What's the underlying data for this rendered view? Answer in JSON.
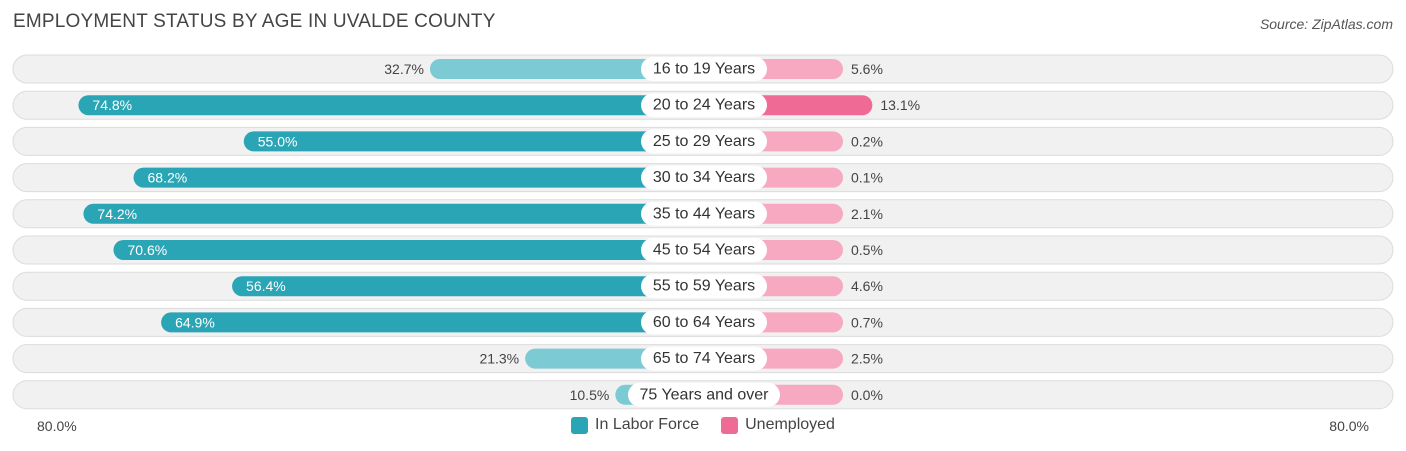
{
  "title": "EMPLOYMENT STATUS BY AGE IN UVALDE COUNTY",
  "source": "Source: ZipAtlas.com",
  "colors": {
    "labor_strong": "#2aa5b5",
    "labor_light": "#7ccad3",
    "unemployed_strong": "#f06a96",
    "unemployed_light": "#f6a9c1",
    "row_bg": "#f1f1f1",
    "row_border": "#dcdcdc"
  },
  "legend": {
    "labor": "In Labor Force",
    "unemployed": "Unemployed"
  },
  "axis": {
    "left_label": "80.0%",
    "right_label": "80.0%"
  },
  "chart_data": {
    "type": "bar",
    "orientation": "horizontal-diverging",
    "xlim": [
      -80,
      80
    ],
    "categories": [
      "16 to 19 Years",
      "20 to 24 Years",
      "25 to 29 Years",
      "30 to 34 Years",
      "35 to 44 Years",
      "45 to 54 Years",
      "55 to 59 Years",
      "60 to 64 Years",
      "65 to 74 Years",
      "75 Years and over"
    ],
    "series": [
      {
        "name": "In Labor Force",
        "values": [
          32.7,
          74.8,
          55.0,
          68.2,
          74.2,
          70.6,
          56.4,
          64.9,
          21.3,
          10.5
        ],
        "labels": [
          "32.7%",
          "74.8%",
          "55.0%",
          "68.2%",
          "74.2%",
          "70.6%",
          "56.4%",
          "64.9%",
          "21.3%",
          "10.5%"
        ]
      },
      {
        "name": "Unemployed",
        "values": [
          5.6,
          13.1,
          0.2,
          0.1,
          2.1,
          0.5,
          4.6,
          0.7,
          2.5,
          0.0
        ],
        "labels": [
          "5.6%",
          "13.1%",
          "0.2%",
          "0.1%",
          "2.1%",
          "0.5%",
          "4.6%",
          "0.7%",
          "2.5%",
          "0.0%"
        ]
      }
    ]
  }
}
